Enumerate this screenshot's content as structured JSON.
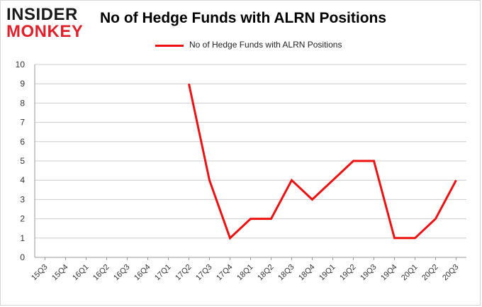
{
  "logo": {
    "line1": "INSIDER",
    "line2": "MONKEY"
  },
  "colors": {
    "series": "#ee1111",
    "grid": "#cccccc",
    "axis": "#999999",
    "logo_red": "#e0202a"
  },
  "chart_data": {
    "type": "line",
    "title": "No of Hedge Funds with ALRN Positions",
    "xlabel": "",
    "ylabel": "",
    "ylim": [
      0,
      10
    ],
    "yticks": [
      0,
      1,
      2,
      3,
      4,
      5,
      6,
      7,
      8,
      9,
      10
    ],
    "grid": true,
    "legend_position": "top-center",
    "categories": [
      "15Q3",
      "15Q4",
      "16Q1",
      "16Q2",
      "16Q3",
      "16Q4",
      "17Q1",
      "17Q2",
      "17Q3",
      "17Q4",
      "18Q1",
      "18Q2",
      "18Q3",
      "18Q4",
      "19Q1",
      "19Q2",
      "19Q3",
      "19Q4",
      "20Q1",
      "20Q2",
      "20Q3"
    ],
    "series": [
      {
        "name": "No of Hedge Funds with ALRN Positions",
        "values": [
          null,
          null,
          null,
          null,
          null,
          null,
          null,
          9,
          4,
          1,
          2,
          2,
          4,
          3,
          4,
          5,
          5,
          1,
          1,
          2,
          4
        ]
      }
    ]
  }
}
